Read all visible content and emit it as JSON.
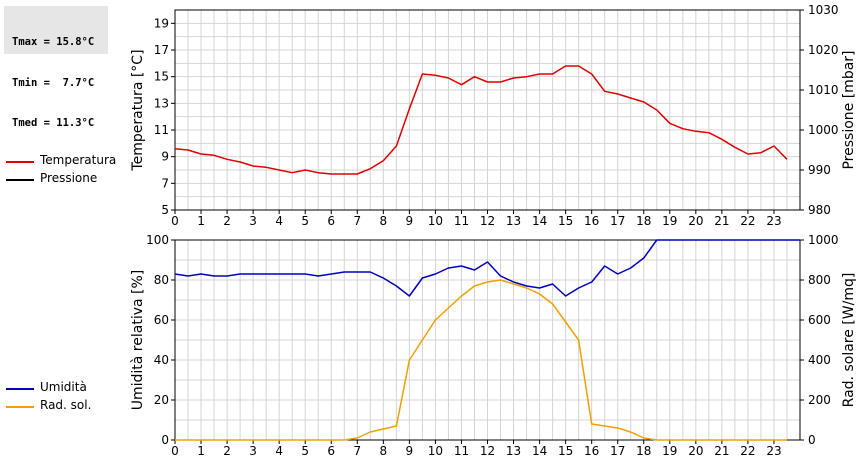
{
  "stats": {
    "lines": [
      "Tmax = 15.8°C",
      "Tmin =  7.7°C",
      "Tmed = 11.3°C"
    ]
  },
  "colors": {
    "temperature": "#e00000",
    "pressure": "#000000",
    "humidity": "#0000c0",
    "radiation": "#f0a000",
    "grid": "#d4d4d4"
  },
  "legend_top": [
    {
      "label": "Temperatura",
      "color": "#e00000"
    },
    {
      "label": "Pressione",
      "color": "#000000"
    }
  ],
  "legend_bottom": [
    {
      "label": "Umidità",
      "color": "#0000c0"
    },
    {
      "label": "Rad. sol.",
      "color": "#f0a000"
    }
  ],
  "chart_data": [
    {
      "type": "line",
      "ylabel": "Temperatura [°C]",
      "y2label": "Pressione [mbar]",
      "xlim": [
        0,
        24
      ],
      "ylim": [
        5,
        20
      ],
      "y2lim": [
        980,
        1030
      ],
      "x_ticks": [
        "0",
        "1",
        "2",
        "3",
        "4",
        "5",
        "6",
        "7",
        "8",
        "9",
        "10",
        "11",
        "12",
        "13",
        "14",
        "15",
        "16",
        "17",
        "18",
        "19",
        "20",
        "21",
        "22",
        "23"
      ],
      "y_ticks": [
        "5",
        "7",
        "9",
        "11",
        "13",
        "15",
        "17",
        "19"
      ],
      "y2_ticks": [
        "980",
        "990",
        "1000",
        "1010",
        "1020",
        "1030"
      ],
      "grid": true,
      "series": [
        {
          "name": "Temperatura",
          "color": "#e00000",
          "x": [
            0,
            0.5,
            1,
            1.5,
            2,
            2.5,
            3,
            3.5,
            4,
            4.5,
            5,
            5.5,
            6,
            6.5,
            7,
            7.5,
            8,
            8.5,
            9,
            9.5,
            10,
            10.5,
            11,
            11.5,
            12,
            12.5,
            13,
            13.5,
            14,
            14.5,
            15,
            15.5,
            16,
            16.5,
            17,
            17.5,
            18,
            18.5,
            19,
            19.5,
            20,
            20.5,
            21,
            21.5,
            22,
            22.5,
            23,
            23.5
          ],
          "y": [
            9.6,
            9.5,
            9.2,
            9.1,
            8.8,
            8.6,
            8.3,
            8.2,
            8.0,
            7.8,
            8.0,
            7.8,
            7.7,
            7.7,
            7.7,
            8.1,
            8.7,
            9.8,
            12.6,
            15.2,
            15.1,
            14.9,
            14.4,
            15.0,
            14.6,
            14.6,
            14.9,
            15.0,
            15.2,
            15.2,
            15.8,
            15.8,
            15.2,
            13.9,
            13.7,
            13.4,
            13.1,
            12.5,
            11.5,
            11.1,
            10.9,
            10.8,
            10.3,
            9.7,
            9.2,
            9.3,
            9.8,
            8.8
          ]
        },
        {
          "name": "Pressione",
          "color": "#000000",
          "x": [],
          "y": []
        }
      ]
    },
    {
      "type": "line",
      "ylabel": "Umidità relativa [%]",
      "y2label": "Rad. solare [W/mq]",
      "xlim": [
        0,
        24
      ],
      "ylim": [
        0,
        100
      ],
      "y2lim": [
        0,
        1000
      ],
      "x_ticks": [
        "0",
        "1",
        "2",
        "3",
        "4",
        "5",
        "6",
        "7",
        "8",
        "9",
        "10",
        "11",
        "12",
        "13",
        "14",
        "15",
        "16",
        "17",
        "18",
        "19",
        "20",
        "21",
        "22",
        "23"
      ],
      "y_ticks": [
        "0",
        "20",
        "40",
        "60",
        "80",
        "100"
      ],
      "y2_ticks": [
        "0",
        "200",
        "400",
        "600",
        "800",
        "1000"
      ],
      "grid": true,
      "series": [
        {
          "name": "Umidità",
          "color": "#0000c0",
          "axis": "left",
          "x": [
            0,
            0.5,
            1,
            1.5,
            2,
            2.5,
            3,
            3.5,
            4,
            4.5,
            5,
            5.5,
            6,
            6.5,
            7,
            7.5,
            8,
            8.5,
            9,
            9.5,
            10,
            10.5,
            11,
            11.5,
            12,
            12.5,
            13,
            13.5,
            14,
            14.5,
            15,
            15.5,
            16,
            16.5,
            17,
            17.5,
            18,
            18.5,
            19,
            19.5,
            20,
            20.5,
            21,
            21.5,
            22,
            22.5,
            23,
            23.5,
            24
          ],
          "y": [
            83,
            82,
            83,
            82,
            82,
            83,
            83,
            83,
            83,
            83,
            83,
            82,
            83,
            84,
            84,
            84,
            81,
            77,
            72,
            81,
            83,
            86,
            87,
            85,
            89,
            82,
            79,
            77,
            76,
            78,
            72,
            76,
            79,
            87,
            83,
            86,
            91,
            100,
            100,
            100,
            100,
            100,
            100,
            100,
            100,
            100,
            100,
            100,
            100
          ]
        },
        {
          "name": "Rad. sol.",
          "color": "#f0a000",
          "axis": "right",
          "x": [
            0,
            1,
            2,
            3,
            4,
            5,
            6,
            6.5,
            7,
            7.5,
            8,
            8.5,
            9,
            9.5,
            10,
            10.5,
            11,
            11.5,
            12,
            12.5,
            13,
            13.5,
            14,
            14.5,
            15,
            15.5,
            16,
            16.5,
            17,
            17.5,
            18,
            18.5,
            19,
            20,
            21,
            22,
            23,
            23.5
          ],
          "y": [
            0,
            0,
            0,
            0,
            0,
            0,
            0,
            0,
            10,
            40,
            55,
            70,
            400,
            500,
            600,
            660,
            720,
            770,
            790,
            800,
            780,
            760,
            730,
            680,
            590,
            500,
            80,
            70,
            60,
            40,
            10,
            0,
            0,
            0,
            0,
            0,
            0,
            0
          ]
        }
      ]
    }
  ]
}
